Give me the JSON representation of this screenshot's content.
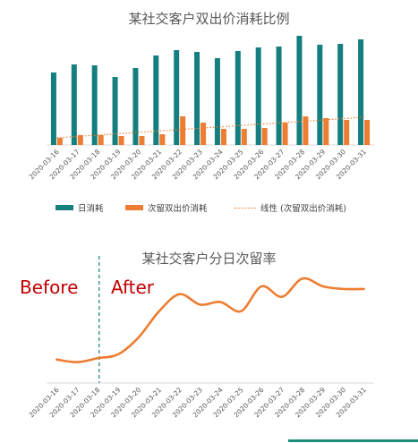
{
  "colors": {
    "teal": "#147F7E",
    "orange": "#ED7D31",
    "dashed_divider": "#1E8C7A",
    "annotation_red": "#C00000"
  },
  "chart_data": [
    {
      "type": "bar",
      "title": "某社交客户双出价消耗比例",
      "categories": [
        "2020-03-16",
        "2020-03-17",
        "2020-03-18",
        "2020-03-19",
        "2020-03-20",
        "2020-03-21",
        "2020-03-22",
        "2020-03-23",
        "2020-03-24",
        "2020-03-25",
        "2020-03-26",
        "2020-03-27",
        "2020-03-28",
        "2020-03-29",
        "2020-03-30",
        "2020-03-31"
      ],
      "series": [
        {
          "name": "日消耗",
          "color": "#147F7E",
          "values": [
            81,
            90,
            89,
            76,
            86,
            100,
            106,
            104,
            97,
            105,
            109,
            110,
            122,
            112,
            113,
            118
          ]
        },
        {
          "name": "次留双出价消耗",
          "color": "#ED7D31",
          "values": [
            8,
            11,
            11,
            10,
            10,
            12,
            32,
            25,
            18,
            18,
            19,
            25,
            32,
            30,
            28,
            28
          ]
        }
      ],
      "trendline": {
        "name": "线性 (次留双出价消耗)",
        "type": "linear",
        "color": "#ED7D31",
        "start": 8,
        "end": 31
      },
      "ylim": [
        0,
        125
      ],
      "legend": "bottom",
      "grid": false
    },
    {
      "type": "line",
      "title": "某社交客户分日次留率",
      "categories": [
        "2020-03-16",
        "2020-03-17",
        "2020-03-18",
        "2020-03-19",
        "2020-03-20",
        "2020-03-21",
        "2020-03-22",
        "2020-03-23",
        "2020-03-24",
        "2020-03-25",
        "2020-03-26",
        "2020-03-27",
        "2020-03-28",
        "2020-03-29",
        "2020-03-30",
        "2020-03-31"
      ],
      "series": [
        {
          "color": "#ED7D31",
          "values": [
            18,
            16,
            19,
            22,
            35,
            55,
            68,
            60,
            62,
            55,
            74,
            66,
            80,
            74,
            72,
            72
          ]
        }
      ],
      "ylim": [
        0,
        100
      ],
      "divider_after": "2020-03-18",
      "annotations": [
        "Before",
        "After"
      ],
      "grid": false
    }
  ]
}
